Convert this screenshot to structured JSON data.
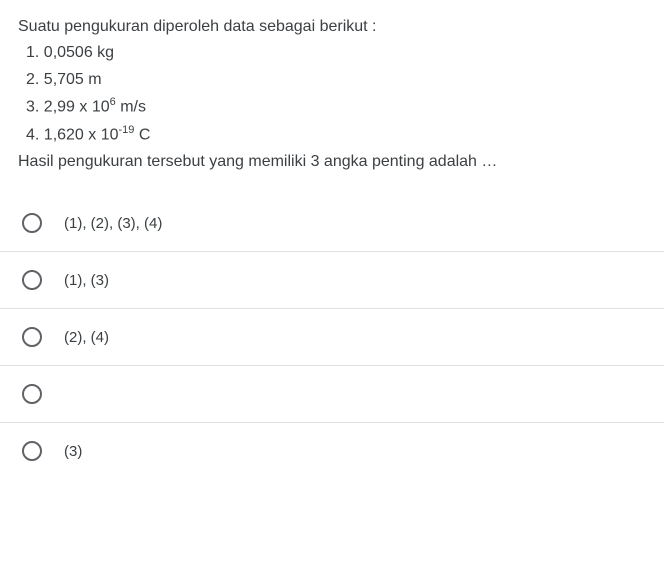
{
  "question": {
    "intro": "Suatu pengukuran diperoleh data sebagai berikut :",
    "lines": {
      "l1_pre": "1. 0,0506 kg",
      "l2_pre": "2. 5,705 m",
      "l3_pre": "3. 2,99  x 10",
      "l3_sup": "6",
      "l3_post": " m/s",
      "l4_pre": "4. 1,620  x  10",
      "l4_sup": "-19",
      "l4_post": " C"
    },
    "prompt": "Hasil pengukuran tersebut  yang memiliki 3 angka penting adalah …"
  },
  "options": {
    "opt1": "(1),  (2), (3), (4)",
    "opt2": "(1), (3)",
    "opt3": "(2), (4)",
    "opt4": "",
    "opt5": "(3)"
  }
}
